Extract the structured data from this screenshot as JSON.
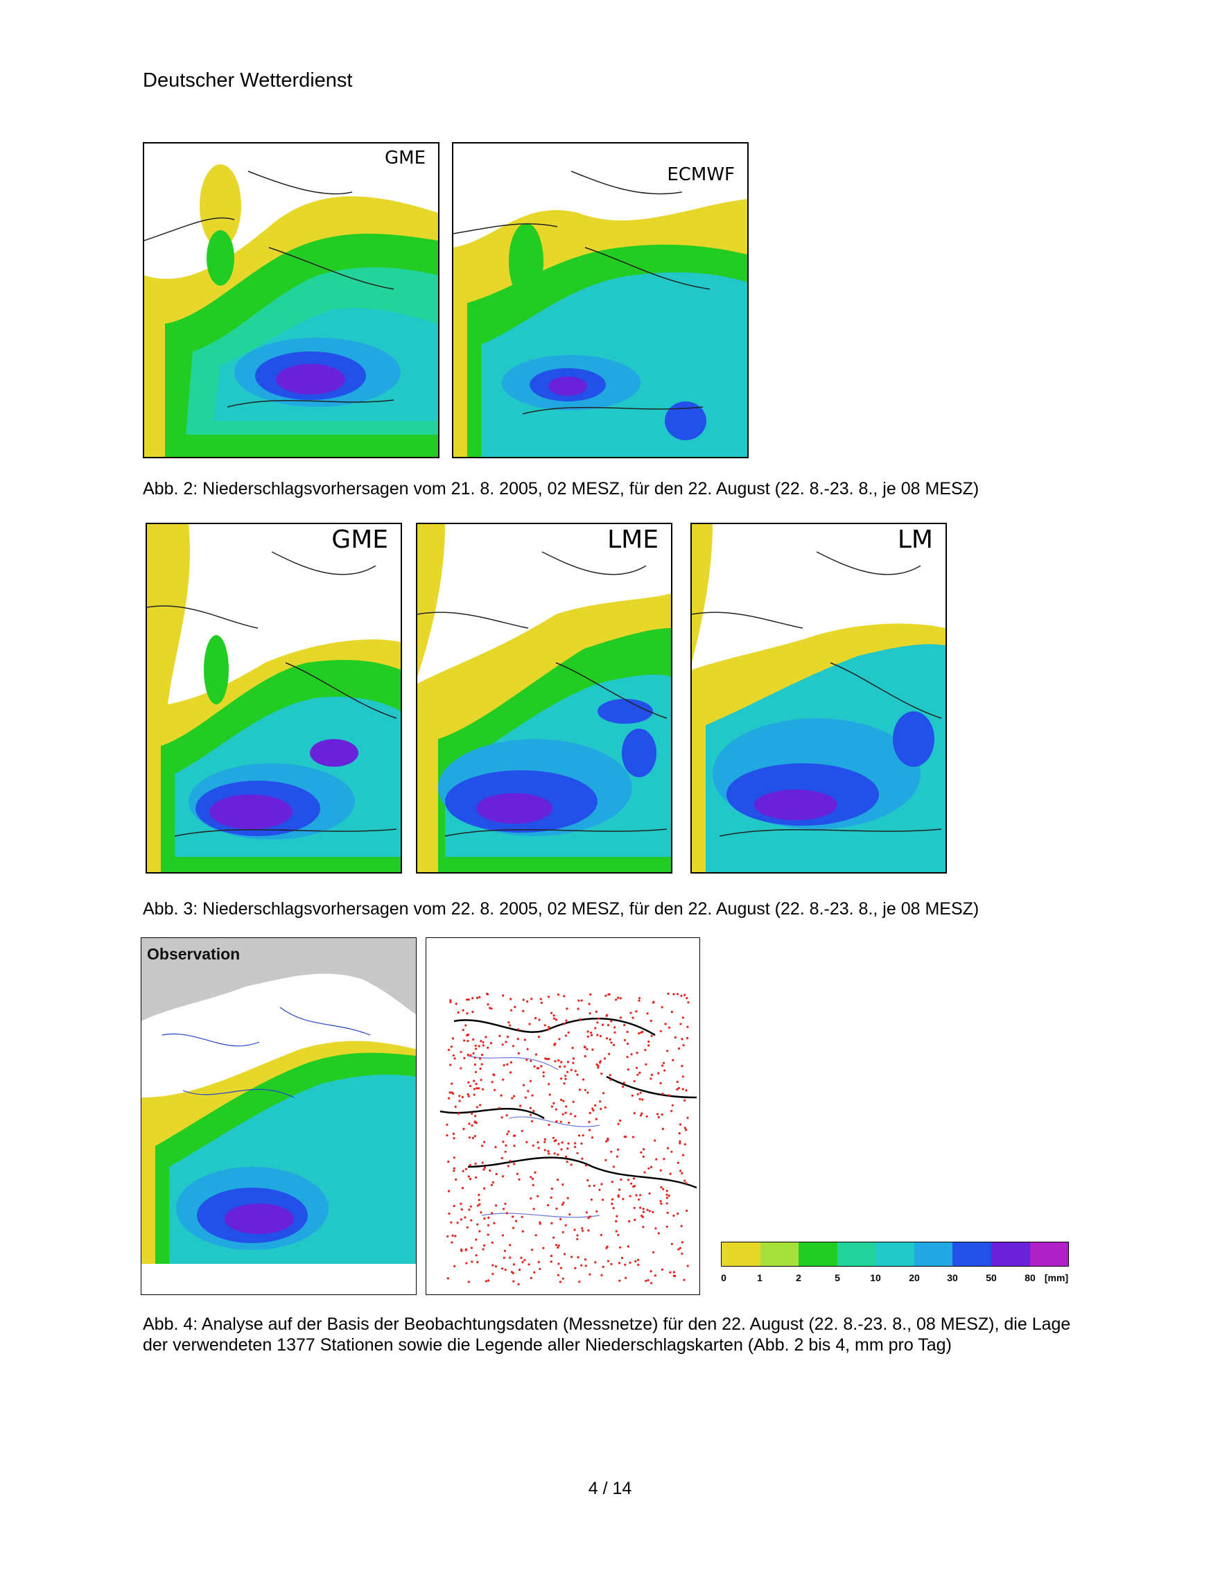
{
  "header": {
    "organization": "Deutscher Wetterdienst"
  },
  "figure2": {
    "caption": "Abb. 2: Niederschlagsvorhersagen vom 21. 8. 2005, 02 MESZ,  für den 22. August (22. 8.-23. 8., je 08 MESZ)",
    "panels": [
      "GME",
      "ECMWF"
    ]
  },
  "figure3": {
    "caption": "Abb. 3: Niederschlagsvorhersagen vom 22. 8. 2005, 02 MESZ, für den 22. August (22. 8.-23. 8., je 08 MESZ)",
    "panels": [
      "GME",
      "LME",
      "LM"
    ]
  },
  "figure4": {
    "caption": "Abb. 4: Analyse auf der Basis der Beobachtungsdaten (Messnetze) für den 22. August (22. 8.-23. 8., 08 MESZ), die Lage der verwendeten 1377 Stationen sowie die Legende aller Niederschlagskarten (Abb. 2 bis 4, mm pro Tag)",
    "observation_label": "Observation"
  },
  "legend": {
    "ticks": [
      "0",
      "1",
      "2",
      "5",
      "10",
      "20",
      "30",
      "50",
      "80"
    ],
    "unit": "[mm]",
    "colors": [
      "#e6d72a",
      "#a8e03a",
      "#22cc22",
      "#22d49a",
      "#22c8c8",
      "#22a8e0",
      "#2250e8",
      "#6a22d8",
      "#b022c8"
    ]
  },
  "footer": {
    "page": "4  / 14"
  }
}
